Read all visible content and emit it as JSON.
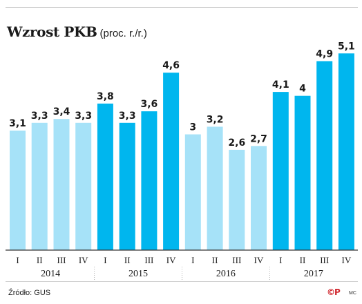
{
  "header": {
    "title": "Wzrost PKB",
    "subtitle": "(proc. r./r.)"
  },
  "footer": {
    "source": "Źródło: GUS",
    "credit": "©P",
    "author": "MC"
  },
  "colors": {
    "light_bar": "#a6e2f8",
    "dark_bar": "#00b6ee",
    "axis": "#333333"
  },
  "chart_data": {
    "type": "bar",
    "title": "Wzrost PKB",
    "subtitle": "(proc. r./r.)",
    "categories": [
      "I",
      "II",
      "III",
      "IV",
      "I",
      "II",
      "III",
      "IV",
      "I",
      "II",
      "III",
      "IV",
      "I",
      "II",
      "III",
      "IV"
    ],
    "years": [
      "2014",
      "2015",
      "2016",
      "2017"
    ],
    "values": [
      3.1,
      3.3,
      3.4,
      3.3,
      3.8,
      3.3,
      3.6,
      4.6,
      3.0,
      3.2,
      2.6,
      2.7,
      4.1,
      4.0,
      4.9,
      5.1
    ],
    "value_labels": [
      "3,1",
      "3,3",
      "3,4",
      "3,3",
      "3,8",
      "3,3",
      "3,6",
      "4,6",
      "3",
      "3,2",
      "2,6",
      "2,7",
      "4,1",
      "4",
      "4,9",
      "5,1"
    ],
    "bar_colors": [
      "light",
      "light",
      "light",
      "light",
      "dark",
      "dark",
      "dark",
      "dark",
      "light",
      "light",
      "light",
      "light",
      "dark",
      "dark",
      "dark",
      "dark"
    ],
    "ylim": [
      0,
      5.5
    ],
    "grid": false,
    "legend": "none"
  }
}
